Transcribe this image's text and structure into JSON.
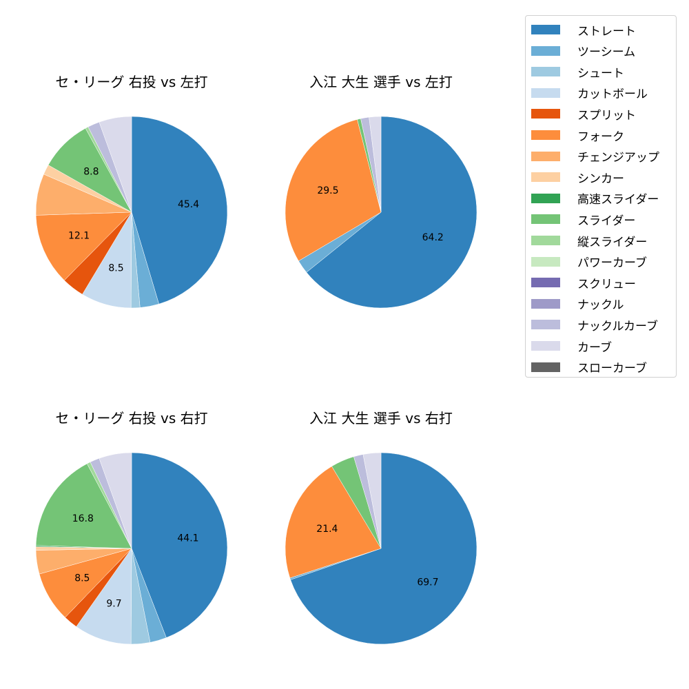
{
  "legend": {
    "items": [
      {
        "label": "ストレート",
        "color": "#3182bd"
      },
      {
        "label": "ツーシーム",
        "color": "#6baed6"
      },
      {
        "label": "シュート",
        "color": "#9ecae1"
      },
      {
        "label": "カットボール",
        "color": "#c6dbef"
      },
      {
        "label": "スプリット",
        "color": "#e6550d"
      },
      {
        "label": "フォーク",
        "color": "#fd8d3c"
      },
      {
        "label": "チェンジアップ",
        "color": "#fdae6b"
      },
      {
        "label": "シンカー",
        "color": "#fdd0a2"
      },
      {
        "label": "高速スライダー",
        "color": "#31a354"
      },
      {
        "label": "スライダー",
        "color": "#74c476"
      },
      {
        "label": "縦スライダー",
        "color": "#a1d99b"
      },
      {
        "label": "パワーカーブ",
        "color": "#c7e9c0"
      },
      {
        "label": "スクリュー",
        "color": "#756bb1"
      },
      {
        "label": "ナックル",
        "color": "#9e9ac8"
      },
      {
        "label": "ナックルカーブ",
        "color": "#bcbddc"
      },
      {
        "label": "カーブ",
        "color": "#dadaeb"
      },
      {
        "label": "スローカーブ",
        "color": "#636363"
      }
    ]
  },
  "chart_data": [
    {
      "type": "pie",
      "title": "セ・リーグ 右投 vs 左打",
      "start_angle": 90,
      "direction": "clockwise",
      "label_threshold": 8,
      "categories": [
        "ストレート",
        "ツーシーム",
        "シュート",
        "カットボール",
        "スプリット",
        "フォーク",
        "チェンジアップ",
        "シンカー",
        "スライダー",
        "縦スライダー",
        "ナックルカーブ",
        "カーブ"
      ],
      "values": [
        45.4,
        3.2,
        1.5,
        8.5,
        3.8,
        12.1,
        7.0,
        1.7,
        8.8,
        0.5,
        2.0,
        5.5
      ],
      "labels_shown": [
        "45.4",
        "8.5",
        "12.1",
        "8.8"
      ]
    },
    {
      "type": "pie",
      "title": "入江 大生 選手 vs 左打",
      "start_angle": 90,
      "direction": "clockwise",
      "label_threshold": 8,
      "categories": [
        "ストレート",
        "ツーシーム",
        "フォーク",
        "スライダー",
        "ナックルカーブ",
        "カーブ"
      ],
      "values": [
        64.2,
        2.3,
        29.5,
        0.6,
        1.4,
        2.0
      ],
      "labels_shown": [
        "64.2",
        "29.5"
      ]
    },
    {
      "type": "pie",
      "title": "セ・リーグ 右投 vs 右打",
      "start_angle": 90,
      "direction": "clockwise",
      "label_threshold": 8,
      "categories": [
        "ストレート",
        "ツーシーム",
        "シュート",
        "カットボール",
        "スプリット",
        "フォーク",
        "チェンジアップ",
        "シンカー",
        "高速スライダー",
        "スライダー",
        "縦スライダー",
        "ナックルカーブ",
        "カーブ"
      ],
      "values": [
        44.1,
        2.8,
        3.2,
        9.7,
        2.4,
        8.5,
        4.0,
        0.6,
        0.2,
        16.8,
        0.6,
        1.6,
        5.5
      ],
      "labels_shown": [
        "44.1",
        "9.7",
        "8.5",
        "16.8"
      ]
    },
    {
      "type": "pie",
      "title": "入江 大生 選手 vs 右打",
      "start_angle": 90,
      "direction": "clockwise",
      "label_threshold": 8,
      "categories": [
        "ストレート",
        "ツーシーム",
        "フォーク",
        "スライダー",
        "ナックルカーブ",
        "カーブ"
      ],
      "values": [
        69.7,
        0.3,
        21.4,
        4.0,
        1.6,
        3.0
      ],
      "labels_shown": [
        "69.7",
        "21.4"
      ]
    }
  ]
}
